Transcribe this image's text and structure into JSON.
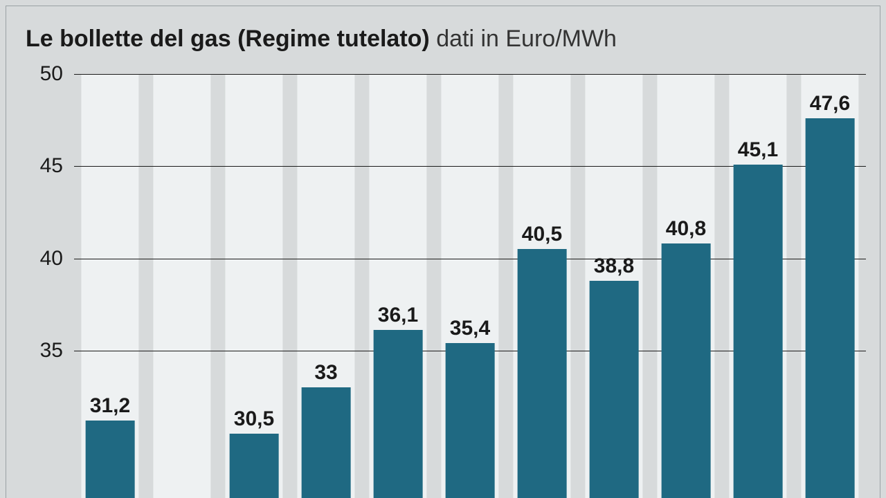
{
  "chart": {
    "type": "bar",
    "title_bold": "Le bollette del gas (Regime tutelato)",
    "title_light": " dati in Euro/MWh",
    "title_fontsize": 34,
    "label_fontsize": 30,
    "value_fontsize": 30,
    "background_color": "#d7dadb",
    "stripe_color": "#eef1f2",
    "gridline_color": "#1a1a1a",
    "bar_color": "#1f6982",
    "text_color": "#1a1a1a",
    "ylim": [
      27,
      50
    ],
    "yticks": [
      50,
      45,
      40,
      35
    ],
    "bar_width_ratio": 0.68,
    "stripe_width_ratio": 0.8,
    "values": [
      31.2,
      null,
      30.5,
      33,
      36.1,
      35.4,
      40.5,
      38.8,
      40.8,
      45.1,
      47.6
    ],
    "labels": [
      "31,2",
      "",
      "30,5",
      "33",
      "36,1",
      "35,4",
      "40,5",
      "38,8",
      "40,8",
      "45,1",
      "47,6"
    ]
  }
}
